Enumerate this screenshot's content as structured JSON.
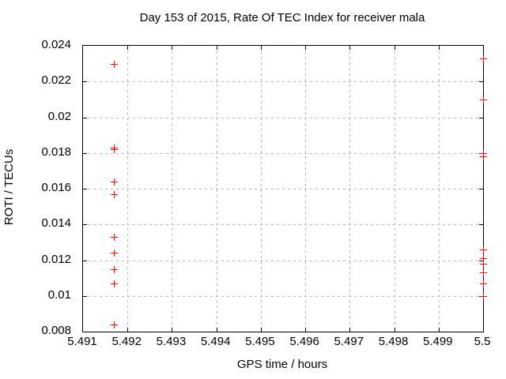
{
  "header": {
    "title": "Day 153 of 2015, Rate Of TEC Index for receiver mala"
  },
  "chart_data": {
    "type": "scatter",
    "title": "Day 153 of 2015, Rate Of TEC Index for receiver mala",
    "xlabel": "GPS time / hours",
    "ylabel": "ROTI / TECUs",
    "xlim": [
      5.491,
      5.5
    ],
    "ylim": [
      0.008,
      0.024
    ],
    "xticks": [
      5.491,
      5.492,
      5.493,
      5.494,
      5.495,
      5.496,
      5.497,
      5.498,
      5.499,
      5.5
    ],
    "xtick_labels": [
      "5.491",
      "5.492",
      "5.493",
      "5.494",
      "5.495",
      "5.496",
      "5.497",
      "5.498",
      "5.499",
      "5.5"
    ],
    "yticks": [
      0.008,
      0.01,
      0.012,
      0.014,
      0.016,
      0.018,
      0.02,
      0.022,
      0.024
    ],
    "ytick_labels": [
      "0.008",
      "0.01",
      "0.012",
      "0.014",
      "0.016",
      "0.018",
      "0.02",
      "0.022",
      "0.024"
    ],
    "grid": true,
    "legend": false,
    "marker": "+",
    "marker_color": "#ff0000",
    "grid_color": "#b8b8b8",
    "axis_color": "#000000",
    "background_color": "#ffffff",
    "series": [
      {
        "name": "ROTI",
        "points": [
          {
            "x": 5.4917,
            "y": 0.023
          },
          {
            "x": 5.4917,
            "y": 0.0183
          },
          {
            "x": 5.4917,
            "y": 0.0182
          },
          {
            "x": 5.4917,
            "y": 0.0164
          },
          {
            "x": 5.4917,
            "y": 0.0157
          },
          {
            "x": 5.4917,
            "y": 0.0133
          },
          {
            "x": 5.4917,
            "y": 0.0124
          },
          {
            "x": 5.4917,
            "y": 0.0115
          },
          {
            "x": 5.4917,
            "y": 0.0107
          },
          {
            "x": 5.4917,
            "y": 0.0084
          },
          {
            "x": 5.5,
            "y": 0.0233
          },
          {
            "x": 5.5,
            "y": 0.021
          },
          {
            "x": 5.5,
            "y": 0.018
          },
          {
            "x": 5.5,
            "y": 0.0178
          },
          {
            "x": 5.5,
            "y": 0.0126
          },
          {
            "x": 5.5,
            "y": 0.0121
          },
          {
            "x": 5.5,
            "y": 0.0118
          },
          {
            "x": 5.5,
            "y": 0.0113
          },
          {
            "x": 5.5,
            "y": 0.0107
          },
          {
            "x": 5.5,
            "y": 0.01
          }
        ]
      }
    ]
  }
}
